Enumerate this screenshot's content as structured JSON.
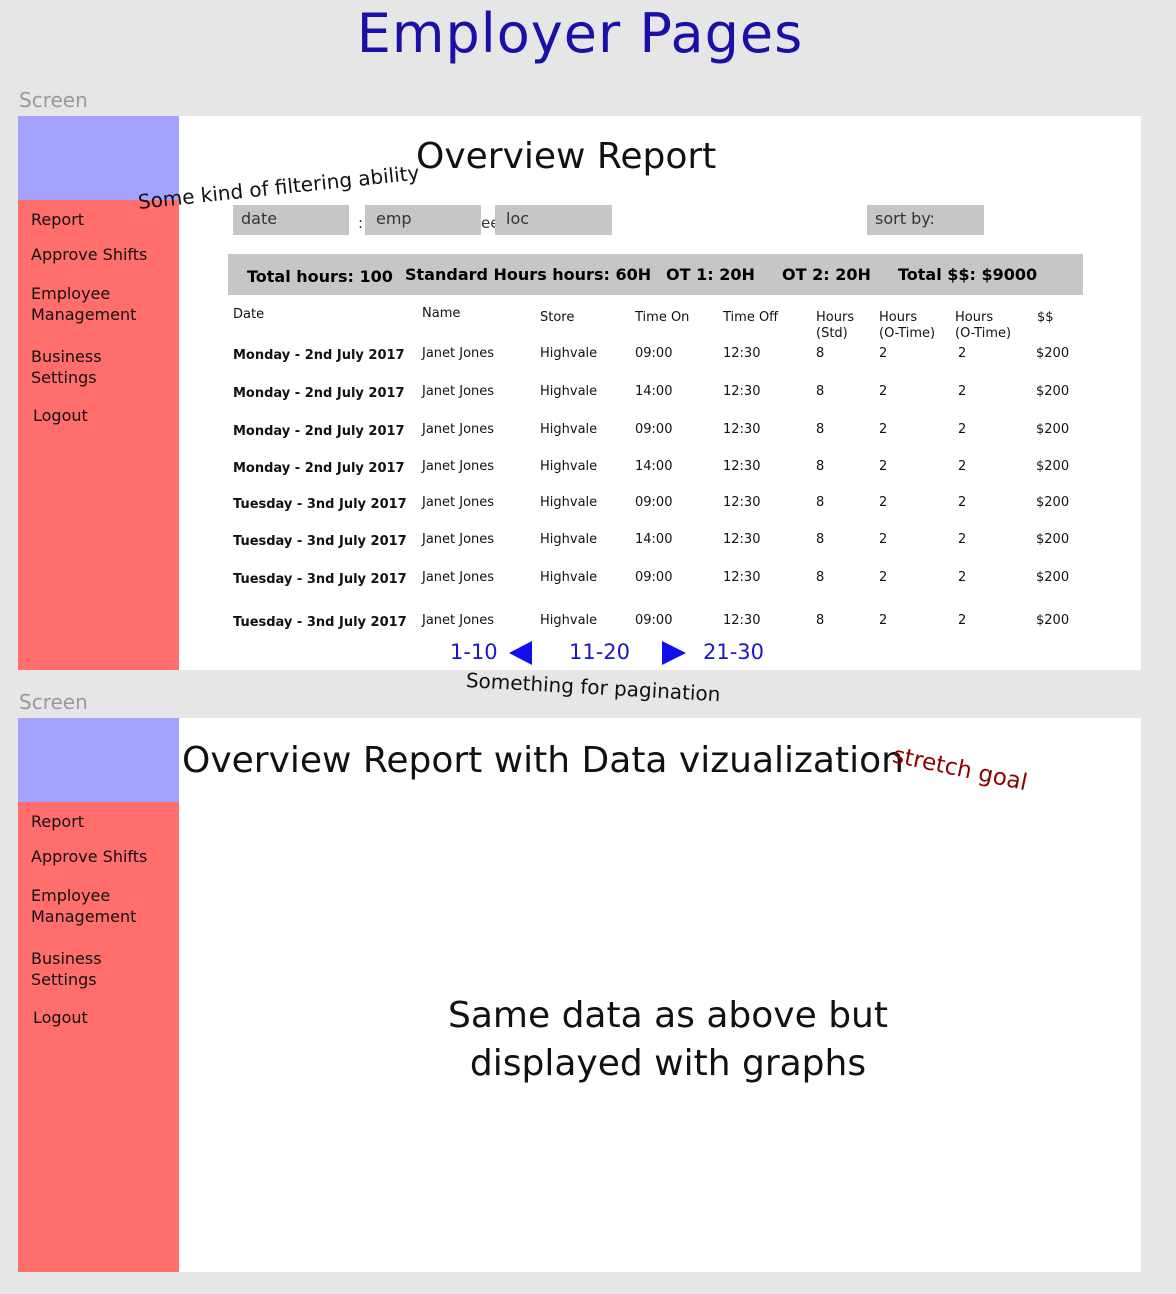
{
  "page_title": "Employer Pages",
  "screen_label": "Screen",
  "nav": {
    "report": "Report",
    "approve_shifts": "Approve Shifts",
    "employee_management_1": "Employee",
    "employee_management_2": "Management",
    "business_settings_1": "Business",
    "business_settings_2": "Settings",
    "logout": "Logout"
  },
  "screen1": {
    "title": "Overview Report",
    "filters": {
      "date": "date",
      "emp": "emp",
      "loc": "loc",
      "sort": "sort by:"
    },
    "hidden_fragment_1": ": D",
    "hidden_fragment_2": "ee",
    "summary": {
      "total_hours": "Total hours: 100",
      "standard_hours": "Standard Hours hours: 60H",
      "ot1": "OT 1: 20H",
      "ot2": "OT 2: 20H",
      "total_money": "Total $$: $9000"
    },
    "headers": {
      "date": "Date",
      "name": "Name",
      "store": "Store",
      "time_on": "Time On",
      "time_off": "Time Off",
      "hours_std_1": "Hours",
      "hours_std_2": "(Std)",
      "hours_ot1_1": "Hours",
      "hours_ot1_2": "(O-Time)",
      "hours_ot2_1": "Hours",
      "hours_ot2_2": "(O-Time)",
      "money": "$$"
    },
    "rows": [
      {
        "date": "Monday - 2nd July 2017",
        "name": "Janet Jones",
        "store": "Highvale",
        "on": "09:00",
        "off": "12:30",
        "std": "8",
        "ot1": "2",
        "ot2": "2",
        "money": "$200"
      },
      {
        "date": "Monday - 2nd July 2017",
        "name": "Janet Jones",
        "store": "Highvale",
        "on": "14:00",
        "off": "12:30",
        "std": "8",
        "ot1": "2",
        "ot2": "2",
        "money": "$200"
      },
      {
        "date": "Monday - 2nd July 2017",
        "name": "Janet Jones",
        "store": "Highvale",
        "on": "09:00",
        "off": "12:30",
        "std": "8",
        "ot1": "2",
        "ot2": "2",
        "money": "$200"
      },
      {
        "date": "Monday - 2nd July 2017",
        "name": "Janet Jones",
        "store": "Highvale",
        "on": "14:00",
        "off": "12:30",
        "std": "8",
        "ot1": "2",
        "ot2": "2",
        "money": "$200"
      },
      {
        "date": "Tuesday - 3nd July 2017",
        "name": "Janet Jones",
        "store": "Highvale",
        "on": "09:00",
        "off": "12:30",
        "std": "8",
        "ot1": "2",
        "ot2": "2",
        "money": "$200"
      },
      {
        "date": "Tuesday - 3nd July 2017",
        "name": "Janet Jones",
        "store": "Highvale",
        "on": "14:00",
        "off": "12:30",
        "std": "8",
        "ot1": "2",
        "ot2": "2",
        "money": "$200"
      },
      {
        "date": "Tuesday - 3nd July 2017",
        "name": "Janet Jones",
        "store": "Highvale",
        "on": "09:00",
        "off": "12:30",
        "std": "8",
        "ot1": "2",
        "ot2": "2",
        "money": "$200"
      },
      {
        "date": "Tuesday - 3nd July 2017",
        "name": "Janet Jones",
        "store": "Highvale",
        "on": "09:00",
        "off": "12:30",
        "std": "8",
        "ot1": "2",
        "ot2": "2",
        "money": "$200"
      }
    ],
    "pagination": {
      "prev": "1-10",
      "current": "11-20",
      "next": "21-30"
    },
    "note_filtering": "Some kind of filtering ability",
    "note_pagination": "Something for pagination"
  },
  "screen2": {
    "title": "Overview Report with Data vizualization",
    "note_stretch": "stretch goal",
    "body_line1": "Same data as above but",
    "body_line2": "displayed with graphs"
  },
  "colors": {
    "heading": "#1a10a8",
    "sidebar": "#ff6d6d",
    "logo_box": "#a3a3ff",
    "pagination": "#1818c8",
    "stretch_note": "#8b0000",
    "filter_bg": "#c6c6c6"
  }
}
